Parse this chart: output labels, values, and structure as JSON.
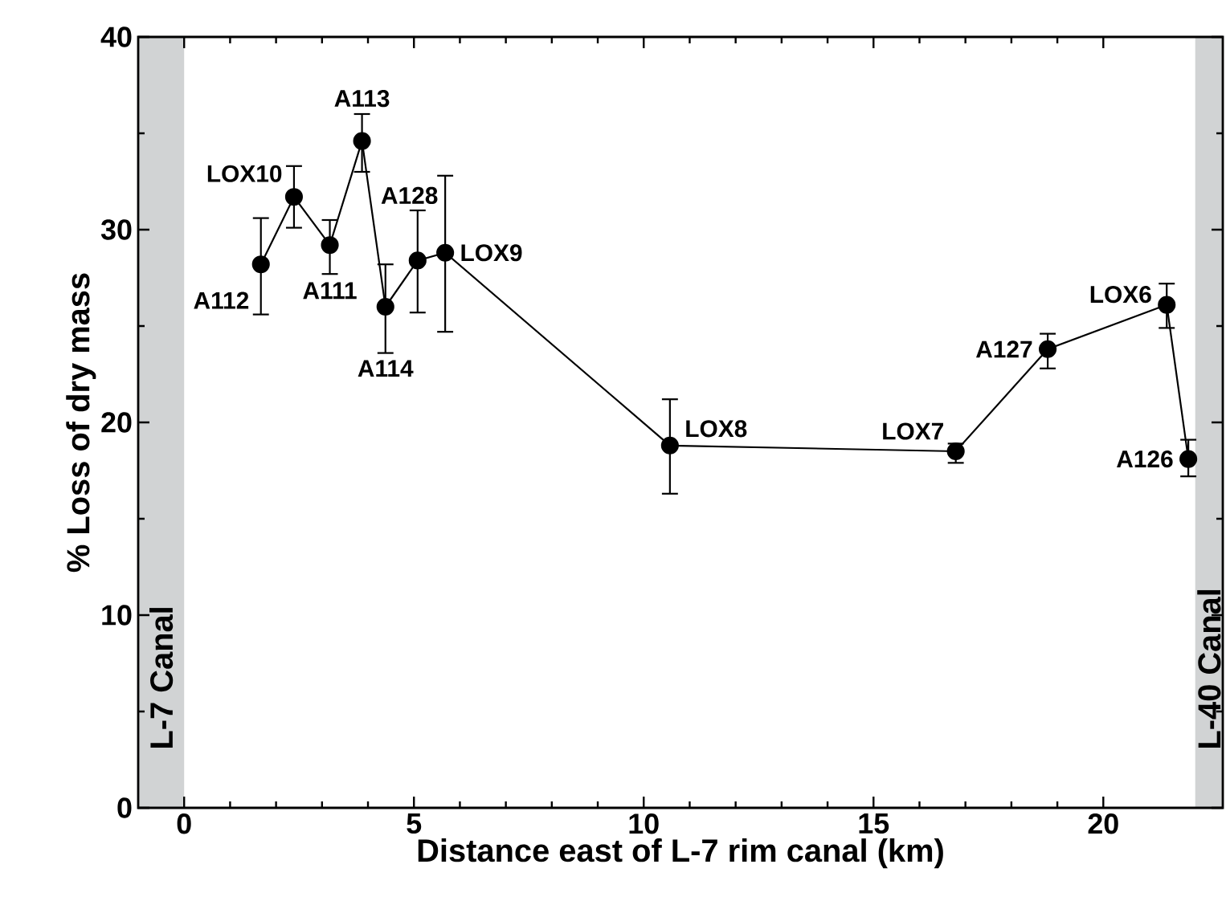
{
  "chart_data": {
    "type": "line",
    "xlabel": "Distance east of L-7 rim canal (km)",
    "ylabel": "% Loss of dry mass",
    "xlim": [
      -1,
      22.6
    ],
    "xticks": [
      0,
      5,
      10,
      15,
      20
    ],
    "ylim": [
      0,
      40
    ],
    "yticks": [
      0,
      10,
      20,
      30,
      40
    ],
    "marker": "circle",
    "line_style": "solid",
    "series": [
      {
        "color": "#000000",
        "x": [
          1.67,
          2.39,
          3.17,
          3.87,
          4.38,
          5.08,
          5.68,
          10.57,
          16.79,
          18.79,
          21.38,
          21.85
        ],
        "values": [
          28.2,
          31.7,
          29.2,
          34.6,
          26.0,
          28.4,
          28.8,
          18.8,
          18.5,
          23.8,
          26.1,
          18.1
        ],
        "errors": [
          [
            25.6,
            30.6
          ],
          [
            30.1,
            33.3
          ],
          [
            27.7,
            30.5
          ],
          [
            33.0,
            36.0
          ],
          [
            23.6,
            28.2
          ],
          [
            25.7,
            31.0
          ],
          [
            24.7,
            32.8
          ],
          [
            16.3,
            21.2
          ],
          [
            17.9,
            18.9
          ],
          [
            22.8,
            24.6
          ],
          [
            24.9,
            27.2
          ],
          [
            17.2,
            19.1
          ]
        ]
      }
    ],
    "annotations": [
      {
        "text": "A112",
        "x": 1.67,
        "y": 28.2
      },
      {
        "text": "LOX10",
        "x": 2.39,
        "y": 31.7
      },
      {
        "text": "A111",
        "x": 3.17,
        "y": 29.2
      },
      {
        "text": "A113",
        "x": 3.87,
        "y": 34.6
      },
      {
        "text": "A114",
        "x": 4.38,
        "y": 26.0
      },
      {
        "text": "A128",
        "x": 5.08,
        "y": 28.4
      },
      {
        "text": "LOX9",
        "x": 5.68,
        "y": 28.8
      },
      {
        "text": "LOX8",
        "x": 10.57,
        "y": 18.8
      },
      {
        "text": "LOX7",
        "x": 16.79,
        "y": 18.5
      },
      {
        "text": "A127",
        "x": 18.79,
        "y": 23.8
      },
      {
        "text": "LOX6",
        "x": 21.38,
        "y": 26.1
      },
      {
        "text": "A126",
        "x": 21.85,
        "y": 18.1
      }
    ],
    "bands": [
      {
        "axis": "x",
        "from": -1,
        "to": 0,
        "label": "L-7 Canal",
        "color": "#d1d3d4"
      },
      {
        "axis": "x",
        "from": 22,
        "to": 22.6,
        "label": "L-40 Canal",
        "color": "#d1d3d4"
      }
    ]
  }
}
